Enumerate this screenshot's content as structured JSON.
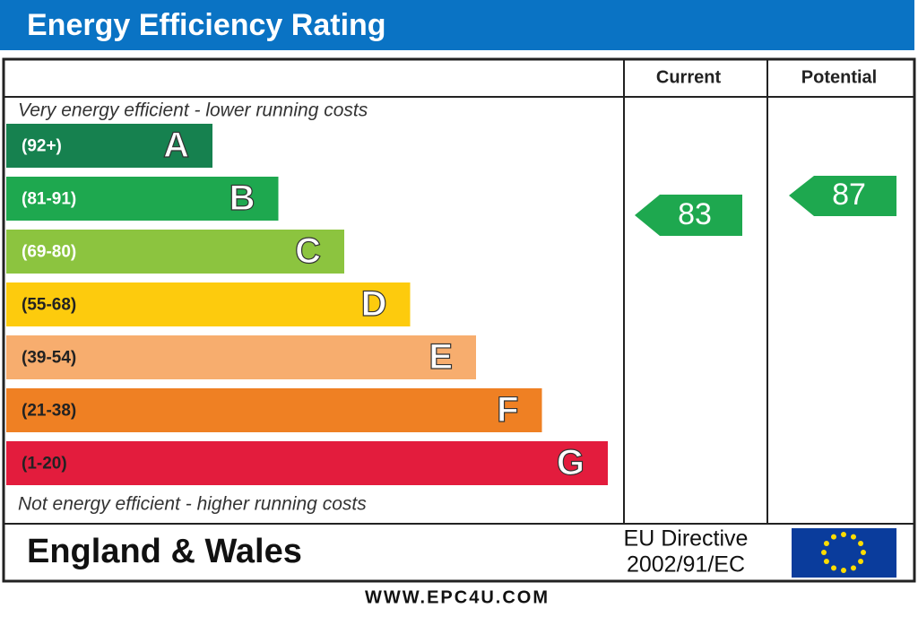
{
  "header": {
    "title": "Energy Efficiency Rating"
  },
  "columns": {
    "current": "Current",
    "potential": "Potential"
  },
  "top_note": "Very energy efficient - lower running costs",
  "bottom_note": "Not energy efficient - higher running costs",
  "bands": [
    {
      "range": "(92+)",
      "letter": "A",
      "color": "#16814f"
    },
    {
      "range": "(81-91)",
      "letter": "B",
      "color": "#1ea84f"
    },
    {
      "range": "(69-80)",
      "letter": "C",
      "color": "#8cc43f"
    },
    {
      "range": "(55-68)",
      "letter": "D",
      "color": "#fdcb0d"
    },
    {
      "range": "(39-54)",
      "letter": "E",
      "color": "#f7ad6e"
    },
    {
      "range": "(21-38)",
      "letter": "F",
      "color": "#ef8023"
    },
    {
      "range": "(1-20)",
      "letter": "G",
      "color": "#e31c3d"
    }
  ],
  "ratings": {
    "current": 83,
    "potential": 87
  },
  "footer": {
    "region": "England & Wales",
    "directive_line1": "EU Directive",
    "directive_line2": "2002/91/EC"
  },
  "website": "WWW.EPC4U.COM"
}
